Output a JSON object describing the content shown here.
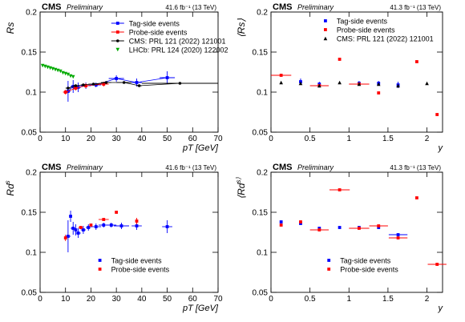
{
  "chart_data": [
    {
      "type": "scatter",
      "cms_label": "CMS",
      "preliminary_label": "Preliminary",
      "lumi_label": "41.6 fb⁻¹ (13 TeV)",
      "xlabel": "pT [GeV]",
      "ylabel": "Rs",
      "xlim": [
        0,
        70
      ],
      "ylim": [
        0.05,
        0.2
      ],
      "xticks": [
        0,
        10,
        20,
        30,
        40,
        50,
        60,
        70
      ],
      "yticks": [
        0.05,
        0.1,
        0.15,
        0.2
      ],
      "legend_position": "top-right",
      "series": [
        {
          "name": "Tag-side events",
          "color": "#0000ff",
          "marker": "square",
          "connected": true,
          "points": [
            {
              "x": 11,
              "y": 0.101,
              "xerr": 1.0,
              "yerr": 0.013
            },
            {
              "x": 13,
              "y": 0.107,
              "xerr": 1.0,
              "yerr": 0.008
            },
            {
              "x": 15,
              "y": 0.106,
              "xerr": 1.0,
              "yerr": 0.006
            },
            {
              "x": 18,
              "y": 0.108,
              "xerr": 2.0,
              "yerr": 0.004
            },
            {
              "x": 22,
              "y": 0.109,
              "xerr": 2.0,
              "yerr": 0.003
            },
            {
              "x": 30,
              "y": 0.117,
              "xerr": 3.0,
              "yerr": 0.004
            },
            {
              "x": 38,
              "y": 0.112,
              "xerr": 2.0,
              "yerr": 0.005
            },
            {
              "x": 50,
              "y": 0.118,
              "xerr": 3.0,
              "yerr": 0.008
            }
          ]
        },
        {
          "name": "Probe-side events",
          "color": "#ff0000",
          "marker": "square",
          "connected": true,
          "points": [
            {
              "x": 10,
              "y": 0.1,
              "xerr": 1.0,
              "yerr": 0.003
            },
            {
              "x": 14,
              "y": 0.105,
              "xerr": 1.0,
              "yerr": 0.003
            },
            {
              "x": 18,
              "y": 0.108,
              "xerr": 1.0,
              "yerr": 0.003
            },
            {
              "x": 25,
              "y": 0.11,
              "xerr": 2.0,
              "yerr": 0.003
            }
          ]
        },
        {
          "name": "CMS: PRL 121 (2022) 121001",
          "color": "#000000",
          "marker": "circle",
          "connected": true,
          "points": [
            {
              "x": 11,
              "y": 0.105,
              "xerr": 1.0
            },
            {
              "x": 14,
              "y": 0.108,
              "xerr": 1.0
            },
            {
              "x": 17,
              "y": 0.109,
              "xerr": 1.0
            },
            {
              "x": 21,
              "y": 0.11,
              "xerr": 2.0
            },
            {
              "x": 26,
              "y": 0.112,
              "xerr": 2.0
            },
            {
              "x": 33,
              "y": 0.112,
              "xerr": 3.0
            },
            {
              "x": 39,
              "y": 0.108,
              "xerr": 1.0
            },
            {
              "x": 55,
              "y": 0.111,
              "xerr": 15.0
            }
          ]
        },
        {
          "name": "LHCb: PRL 124 (2020) 122002",
          "color": "#00aa00",
          "marker": "triangle-down",
          "connected": false,
          "points": [
            {
              "x": 1,
              "y": 0.133
            },
            {
              "x": 2,
              "y": 0.132
            },
            {
              "x": 3,
              "y": 0.131
            },
            {
              "x": 4,
              "y": 0.13
            },
            {
              "x": 5,
              "y": 0.129
            },
            {
              "x": 6,
              "y": 0.128
            },
            {
              "x": 7,
              "y": 0.127
            },
            {
              "x": 8,
              "y": 0.126
            },
            {
              "x": 9,
              "y": 0.124
            },
            {
              "x": 10,
              "y": 0.123
            },
            {
              "x": 11,
              "y": 0.122
            },
            {
              "x": 12,
              "y": 0.12
            },
            {
              "x": 13,
              "y": 0.119
            }
          ]
        }
      ]
    },
    {
      "type": "scatter",
      "cms_label": "CMS",
      "preliminary_label": "Preliminary",
      "lumi_label": "41.3 fb⁻¹ (13 TeV)",
      "xlabel": "y",
      "ylabel": "⟨Rs⟩",
      "xlim": [
        0,
        2.2
      ],
      "ylim": [
        0.05,
        0.2
      ],
      "xticks": [
        0,
        0.5,
        1,
        1.5,
        2
      ],
      "yticks": [
        0.05,
        0.1,
        0.15,
        0.2
      ],
      "legend_position": "top-center",
      "series": [
        {
          "name": "Tag-side events",
          "color": "#0000ff",
          "marker": "square",
          "connected": false,
          "points": [
            {
              "x": 0.38,
              "y": 0.113,
              "yerr": 0.004
            },
            {
              "x": 0.62,
              "y": 0.11,
              "yerr": 0.003
            },
            {
              "x": 1.13,
              "y": 0.111,
              "yerr": 0.003
            },
            {
              "x": 1.38,
              "y": 0.111,
              "yerr": 0.003
            },
            {
              "x": 1.63,
              "y": 0.109,
              "yerr": 0.004
            }
          ]
        },
        {
          "name": "Probe-side events",
          "color": "#ff0000",
          "marker": "square",
          "connected": false,
          "points": [
            {
              "x": 0.13,
              "y": 0.121,
              "xerr": 0.13
            },
            {
              "x": 0.62,
              "y": 0.108,
              "xerr": 0.12
            },
            {
              "x": 0.88,
              "y": 0.141
            },
            {
              "x": 1.13,
              "y": 0.11,
              "xerr": 0.13
            },
            {
              "x": 1.38,
              "y": 0.099
            },
            {
              "x": 1.87,
              "y": 0.138
            },
            {
              "x": 2.13,
              "y": 0.072
            }
          ]
        },
        {
          "name": "CMS: PRL 121 (2022) 121001",
          "color": "#000000",
          "marker": "triangle",
          "connected": false,
          "points": [
            {
              "x": 0.13,
              "y": 0.112
            },
            {
              "x": 0.38,
              "y": 0.111
            },
            {
              "x": 0.62,
              "y": 0.108
            },
            {
              "x": 0.88,
              "y": 0.112
            },
            {
              "x": 1.13,
              "y": 0.11
            },
            {
              "x": 1.38,
              "y": 0.11
            },
            {
              "x": 1.63,
              "y": 0.108
            },
            {
              "x": 2.0,
              "y": 0.111
            }
          ]
        }
      ]
    },
    {
      "type": "scatter",
      "cms_label": "CMS",
      "preliminary_label": "Preliminary",
      "lumi_label": "41.6 fb⁻¹ (13 TeV)",
      "xlabel": "pT [GeV]",
      "ylabel": "Rd s",
      "xlim": [
        0,
        70
      ],
      "ylim": [
        0.05,
        0.2
      ],
      "xticks": [
        0,
        10,
        20,
        30,
        40,
        50,
        60,
        70
      ],
      "yticks": [
        0.05,
        0.1,
        0.15,
        0.2
      ],
      "legend_position": "bottom-center",
      "series": [
        {
          "name": "Tag-side events",
          "color": "#0000ff",
          "marker": "square",
          "connected": false,
          "points": [
            {
              "x": 11,
              "y": 0.12,
              "xerr": 1.0,
              "yerr": 0.02
            },
            {
              "x": 12,
              "y": 0.145,
              "yerr": 0.007
            },
            {
              "x": 13,
              "y": 0.13,
              "xerr": 1.0,
              "yerr": 0.008
            },
            {
              "x": 14,
              "y": 0.128,
              "yerr": 0.007
            },
            {
              "x": 15,
              "y": 0.124,
              "xerr": 1.0,
              "yerr": 0.006
            },
            {
              "x": 17,
              "y": 0.128,
              "xerr": 1.0,
              "yerr": 0.005
            },
            {
              "x": 19,
              "y": 0.131,
              "xerr": 1.0,
              "yerr": 0.004
            },
            {
              "x": 22,
              "y": 0.132,
              "xerr": 2.0,
              "yerr": 0.004
            },
            {
              "x": 25,
              "y": 0.134,
              "xerr": 2.0,
              "yerr": 0.003
            },
            {
              "x": 28,
              "y": 0.134,
              "xerr": 2.0,
              "yerr": 0.003
            },
            {
              "x": 32,
              "y": 0.133,
              "xerr": 3.0,
              "yerr": 0.004
            },
            {
              "x": 38,
              "y": 0.133,
              "xerr": 2.0,
              "yerr": 0.005
            },
            {
              "x": 50,
              "y": 0.132,
              "xerr": 2.0,
              "yerr": 0.008
            }
          ]
        },
        {
          "name": "Probe-side events",
          "color": "#ff0000",
          "marker": "square",
          "connected": false,
          "points": [
            {
              "x": 10,
              "y": 0.118,
              "yerr": 0.004
            },
            {
              "x": 16,
              "y": 0.131,
              "xerr": 1.0
            },
            {
              "x": 20,
              "y": 0.134
            },
            {
              "x": 25,
              "y": 0.141,
              "xerr": 2.0
            },
            {
              "x": 30,
              "y": 0.15
            },
            {
              "x": 38,
              "y": 0.139,
              "yerr": 0.004
            }
          ]
        }
      ]
    },
    {
      "type": "scatter",
      "cms_label": "CMS",
      "preliminary_label": "Preliminary",
      "lumi_label": "41.3 fb⁻¹ (13 TeV)",
      "xlabel": "y",
      "ylabel": "⟨Rd s⟩",
      "xlim": [
        0,
        2.2
      ],
      "ylim": [
        0.05,
        0.2
      ],
      "xticks": [
        0,
        0.5,
        1,
        1.5,
        2
      ],
      "yticks": [
        0.05,
        0.1,
        0.15,
        0.2
      ],
      "legend_position": "bottom-center",
      "series": [
        {
          "name": "Tag-side events",
          "color": "#0000ff",
          "marker": "square",
          "connected": false,
          "points": [
            {
              "x": 0.13,
              "y": 0.138
            },
            {
              "x": 0.38,
              "y": 0.136
            },
            {
              "x": 0.62,
              "y": 0.13
            },
            {
              "x": 0.88,
              "y": 0.131
            },
            {
              "x": 1.13,
              "y": 0.131
            },
            {
              "x": 1.38,
              "y": 0.131
            },
            {
              "x": 1.63,
              "y": 0.122,
              "xerr": 0.12
            }
          ]
        },
        {
          "name": "Probe-side events",
          "color": "#ff0000",
          "marker": "square",
          "connected": false,
          "points": [
            {
              "x": 0.13,
              "y": 0.134
            },
            {
              "x": 0.38,
              "y": 0.138
            },
            {
              "x": 0.62,
              "y": 0.128,
              "xerr": 0.12
            },
            {
              "x": 0.88,
              "y": 0.178,
              "xerr": 0.13
            },
            {
              "x": 1.13,
              "y": 0.13,
              "xerr": 0.13
            },
            {
              "x": 1.38,
              "y": 0.133,
              "xerr": 0.12
            },
            {
              "x": 1.63,
              "y": 0.118,
              "xerr": 0.12
            },
            {
              "x": 1.87,
              "y": 0.168
            },
            {
              "x": 2.13,
              "y": 0.085,
              "xerr": 0.12
            }
          ]
        }
      ]
    }
  ]
}
